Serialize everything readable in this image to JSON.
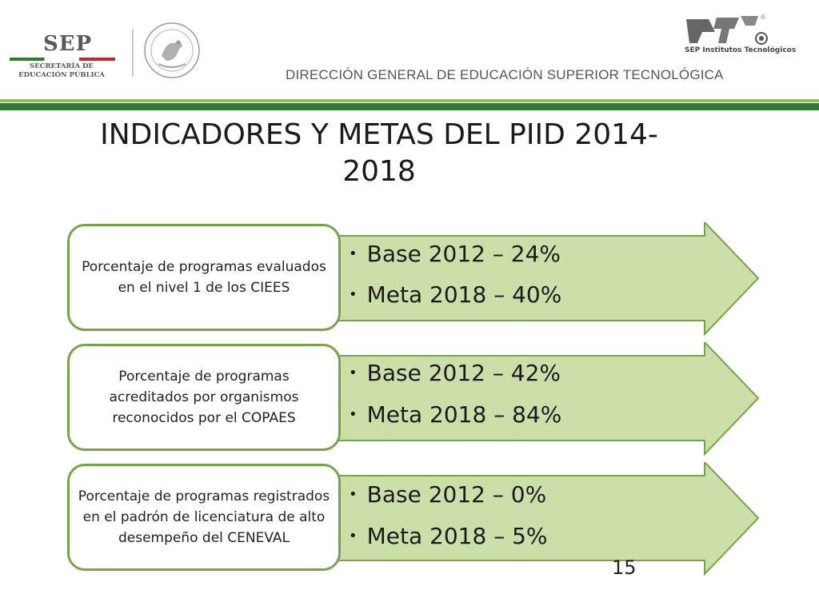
{
  "header": {
    "sep_title": "SEP",
    "sep_subtitle_line1": "SECRETARÍA DE",
    "sep_subtitle_line2": "EDUCACIÓN PÚBLICA",
    "it_logo_text": "Institutos Tecnológicos",
    "it_registered": "®",
    "direction_label": "DIRECCIÓN GENERAL DE EDUCACIÓN SUPERIOR TECNOLÓGICA"
  },
  "slide": {
    "title_line1": "INDICADORES Y METAS DEL PIID 2014-",
    "title_line2": "2018",
    "page_number": "15"
  },
  "indicators": [
    {
      "label": "Porcentaje de programas evaluados en el nivel 1 de los CIEES",
      "base": "Base 2012 – 24%",
      "meta": "Meta 2018 – 40%"
    },
    {
      "label": "Porcentaje de programas acreditados por organismos reconocidos por el COPAES",
      "base": "Base 2012 – 42%",
      "meta": "Meta 2018 – 84%"
    },
    {
      "label": "Porcentaje de programas registrados en el padrón de licenciatura de alto desempeño del CENEVAL",
      "base": "Base 2012 – 0%",
      "meta": "Meta 2018 – 5%"
    }
  ],
  "colors": {
    "arrow_fill": "#cddfa8",
    "arrow_stroke": "#77a44a",
    "bar_light": "#8bc34a",
    "bar_dark": "#2e7d32"
  },
  "icons": {
    "bullet": "•"
  }
}
